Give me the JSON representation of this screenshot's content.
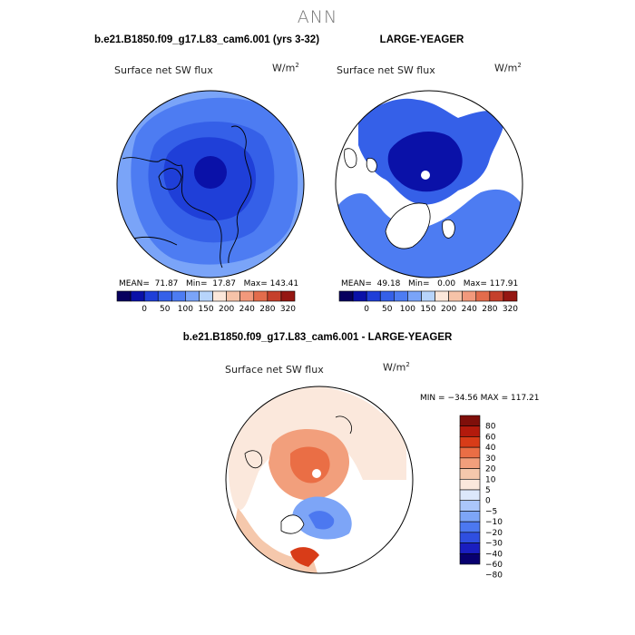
{
  "header": {
    "season": "ANN"
  },
  "colors": {
    "abs_palette": [
      "#08005e",
      "#0a11a8",
      "#1f3fd8",
      "#3560e8",
      "#4d7cf2",
      "#7aa4f8",
      "#b7d4fb",
      "#fbe7da",
      "#f6c3a8",
      "#f2997c",
      "#e36c4c",
      "#c5402c",
      "#951712"
    ],
    "diff_palette": [
      "#08006f",
      "#1a1ec0",
      "#2f4fe0",
      "#4c78f0",
      "#7da5f7",
      "#aac6fa",
      "#dce8fb",
      "#fbe8dc",
      "#f5c8ac",
      "#f29f7c",
      "#ea6e45",
      "#d83c18",
      "#b31a0c",
      "#7f0f0a"
    ],
    "land": "#ffffff",
    "coast": "#000000"
  },
  "chart_data": [
    {
      "type": "heatmap",
      "id": "model",
      "title": "b.e21.B1850.f09_g17.L83_cam6.001 (yrs 3-32)",
      "variable": "Surface net SW flux",
      "units": "W/m",
      "units_sup": "2",
      "stats": {
        "mean_label": "MEAN=",
        "mean": "71.87",
        "min_label": "Min=",
        "min": "17.87",
        "max_label": "Max=",
        "max": "143.41"
      },
      "colorbar_ticks": [
        "0",
        "50",
        "100",
        "150",
        "200",
        "240",
        "280",
        "320"
      ],
      "projection": "north-polar-stereographic",
      "pattern": "blue shades, darkest near pole (~20-50), lighter toward lower latitudes (~100-150)"
    },
    {
      "type": "heatmap",
      "id": "obs",
      "title": "LARGE-YEAGER",
      "variable": "Surface net SW flux",
      "units": "W/m",
      "units_sup": "2",
      "stats": {
        "mean_label": "MEAN=",
        "mean": "49.18",
        "min_label": "Min=",
        "min": "0.00",
        "max_label": "Max=",
        "max": "117.91"
      },
      "colorbar_ticks": [
        "0",
        "50",
        "100",
        "150",
        "200",
        "240",
        "280",
        "320"
      ],
      "projection": "north-polar-stereographic",
      "pattern": "ocean only; dark blue Arctic Ocean, medium blue marginal seas; land masked white"
    },
    {
      "type": "heatmap",
      "id": "diff",
      "title": "b.e21.B1850.f09_g17.L83_cam6.001 - LARGE-YEAGER",
      "variable": "Surface net SW flux",
      "units": "W/m",
      "units_sup": "2",
      "stats": {
        "min_label": "MIN =",
        "min": "−34.56",
        "max_label": "MAX =",
        "max": "117.21"
      },
      "colorbar_ticks": [
        "80",
        "60",
        "40",
        "30",
        "20",
        "10",
        "5",
        "0",
        "−5",
        "−10",
        "−20",
        "−30",
        "−40",
        "−60",
        "−80"
      ],
      "projection": "north-polar-stereographic",
      "pattern": "positive (orange/red 10-40) over central Arctic Ocean, negative (blue) over Barents/Norwegian seas"
    }
  ]
}
